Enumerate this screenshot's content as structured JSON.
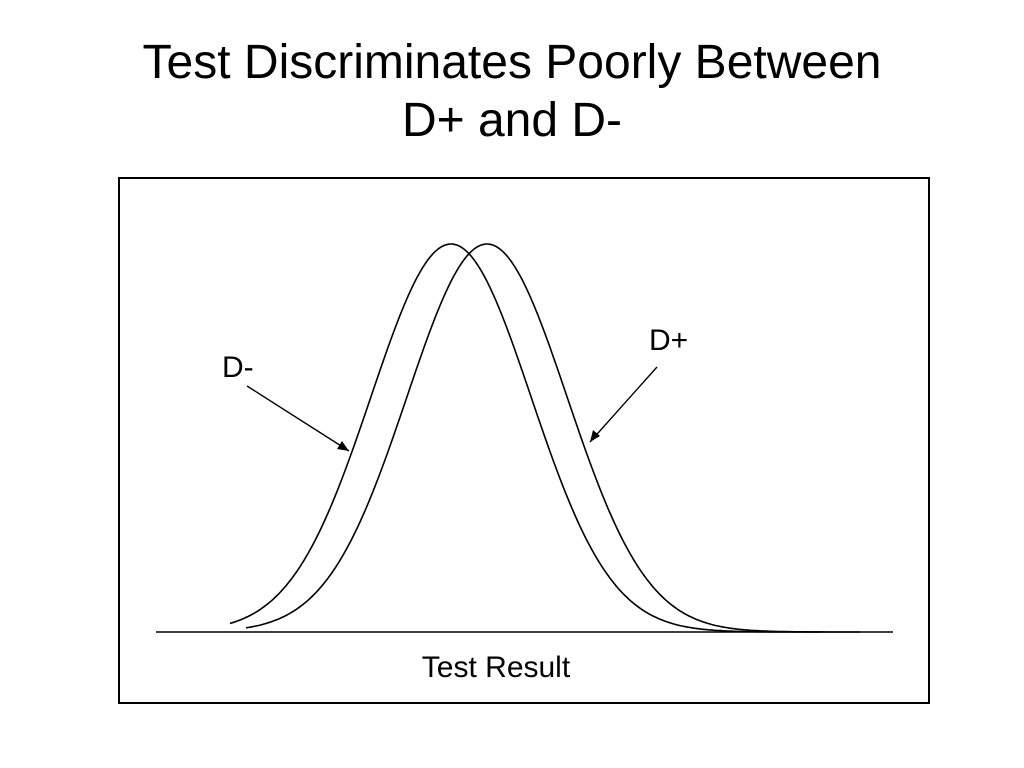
{
  "title": {
    "line1": "Test Discriminates Poorly Between",
    "line2": "D+ and D-"
  },
  "diagram": {
    "x_axis_label": "Test Result",
    "curves": [
      {
        "label": "D-"
      },
      {
        "label": "D+"
      }
    ]
  }
}
